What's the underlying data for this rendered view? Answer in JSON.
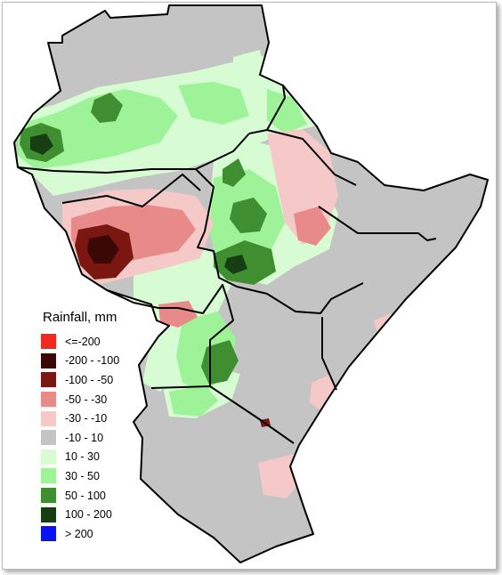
{
  "legend": {
    "title": "Rainfall, mm",
    "items": [
      {
        "label": "<=-200",
        "color": "#f02a1e"
      },
      {
        "label": "-200 - -100",
        "color": "#3a0906"
      },
      {
        "label": "-100 - -50",
        "color": "#7a1710"
      },
      {
        "label": "-50 - -30",
        "color": "#e88a8a"
      },
      {
        "label": "-30 - -10",
        "color": "#f6c9c9"
      },
      {
        "label": "-10 - 10",
        "color": "#c4c4c4"
      },
      {
        "label": "10 - 30",
        "color": "#d7fbd2"
      },
      {
        "label": "30 - 50",
        "color": "#9ef398"
      },
      {
        "label": "50 - 100",
        "color": "#3f8f30"
      },
      {
        "label": "100 - 200",
        "color": "#173e12"
      },
      {
        "label": "> 200",
        "color": "#0a14f0"
      }
    ]
  },
  "colors": {
    "land": "#c4c4c4",
    "border": "#000000",
    "background": "#ffffff"
  }
}
